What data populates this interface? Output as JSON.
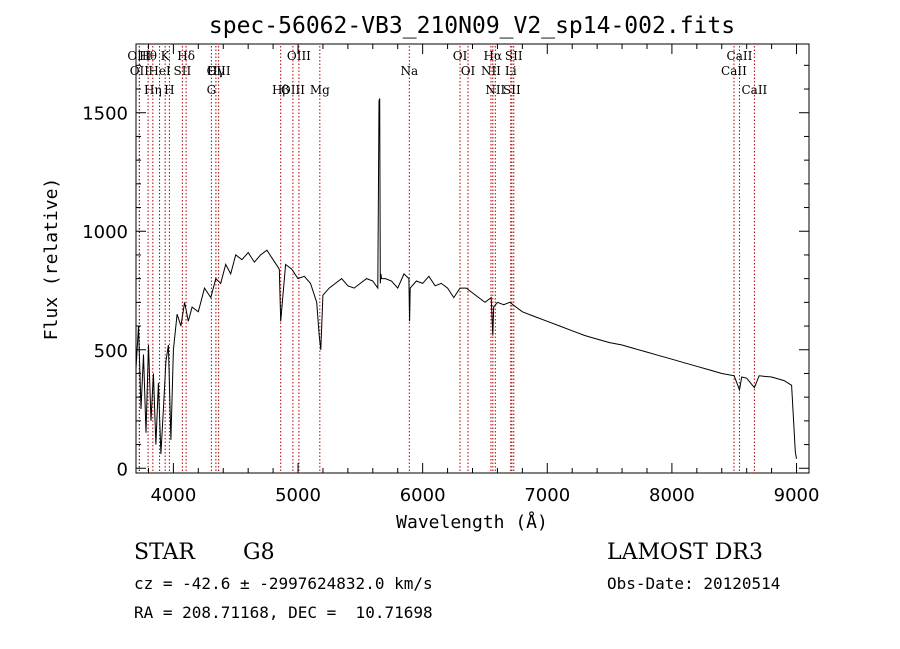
{
  "chart_data": {
    "type": "line",
    "title": "spec-56062-VB3_210N09_V2_sp14-002.fits",
    "xlabel": "Wavelength (Å)",
    "ylabel": "Flux (relative)",
    "xlim": [
      3700,
      9100
    ],
    "ylim": [
      -20,
      1790
    ],
    "xticks": [
      4000,
      5000,
      6000,
      7000,
      8000,
      9000
    ],
    "yticks": [
      0,
      500,
      1000,
      1500
    ],
    "series": [
      {
        "name": "spectrum",
        "x": [
          3700,
          3720,
          3740,
          3760,
          3780,
          3800,
          3820,
          3840,
          3860,
          3880,
          3900,
          3920,
          3940,
          3960,
          3980,
          4000,
          4030,
          4060,
          4090,
          4120,
          4150,
          4200,
          4250,
          4300,
          4340,
          4380,
          4420,
          4460,
          4500,
          4550,
          4600,
          4650,
          4700,
          4750,
          4800,
          4850,
          4861,
          4900,
          4950,
          5000,
          5050,
          5100,
          5150,
          5170,
          5183,
          5200,
          5250,
          5300,
          5350,
          5400,
          5450,
          5500,
          5550,
          5600,
          5640,
          5650,
          5655,
          5660,
          5665,
          5670,
          5700,
          5750,
          5800,
          5850,
          5890,
          5895,
          5900,
          5950,
          6000,
          6050,
          6100,
          6150,
          6200,
          6250,
          6300,
          6350,
          6400,
          6450,
          6500,
          6550,
          6563,
          6570,
          6600,
          6650,
          6700,
          6750,
          6800,
          6900,
          7000,
          7100,
          7200,
          7300,
          7400,
          7500,
          7600,
          7700,
          7800,
          7900,
          8000,
          8100,
          8200,
          8300,
          8400,
          8500,
          8542,
          8560,
          8600,
          8662,
          8700,
          8800,
          8900,
          8960,
          8990,
          9000
        ],
        "y": [
          420,
          600,
          250,
          480,
          150,
          520,
          200,
          400,
          100,
          360,
          60,
          250,
          450,
          520,
          120,
          500,
          650,
          600,
          700,
          620,
          680,
          660,
          760,
          720,
          800,
          780,
          860,
          820,
          900,
          880,
          910,
          870,
          900,
          920,
          880,
          840,
          620,
          860,
          840,
          800,
          810,
          780,
          700,
          560,
          500,
          730,
          760,
          780,
          800,
          770,
          760,
          780,
          800,
          790,
          760,
          1550,
          1560,
          780,
          820,
          800,
          800,
          790,
          760,
          820,
          800,
          620,
          760,
          790,
          780,
          810,
          770,
          780,
          760,
          720,
          760,
          760,
          740,
          720,
          700,
          720,
          560,
          680,
          700,
          690,
          700,
          680,
          660,
          640,
          620,
          600,
          580,
          560,
          545,
          530,
          520,
          505,
          490,
          475,
          460,
          445,
          430,
          415,
          400,
          390,
          330,
          385,
          380,
          340,
          390,
          385,
          370,
          350,
          70,
          40
        ]
      }
    ],
    "spectral_lines": [
      {
        "label": "Hθ",
        "wavelength": 3797
      },
      {
        "label": "OII",
        "wavelength": 3727
      },
      {
        "label": "OIII",
        "wavelength": 3727
      },
      {
        "label": "HeI",
        "wavelength": 3889
      },
      {
        "label": "Hη",
        "wavelength": 3835
      },
      {
        "label": "K",
        "wavelength": 3934
      },
      {
        "label": "H",
        "wavelength": 3968
      },
      {
        "label": "SII",
        "wavelength": 4072
      },
      {
        "label": "Hδ",
        "wavelength": 4102
      },
      {
        "label": "OIII",
        "wavelength": 4363
      },
      {
        "label": "Hγ",
        "wavelength": 4341
      },
      {
        "label": "G",
        "wavelength": 4305
      },
      {
        "label": "OIII",
        "wavelength": 4959
      },
      {
        "label": "OIII",
        "wavelength": 5007
      },
      {
        "label": "Hβ",
        "wavelength": 4861
      },
      {
        "label": "Mg",
        "wavelength": 5175
      },
      {
        "label": "Na",
        "wavelength": 5893
      },
      {
        "label": "OI",
        "wavelength": 6300
      },
      {
        "label": "OI",
        "wavelength": 6364
      },
      {
        "label": "Hα",
        "wavelength": 6563
      },
      {
        "label": "SII",
        "wavelength": 6716
      },
      {
        "label": "NII",
        "wavelength": 6548
      },
      {
        "label": "Li",
        "wavelength": 6707
      },
      {
        "label": "NII",
        "wavelength": 6583
      },
      {
        "label": "SII",
        "wavelength": 6731
      },
      {
        "label": "CaII",
        "wavelength": 8542
      },
      {
        "label": "CaII",
        "wavelength": 8498
      },
      {
        "label": "CaII",
        "wavelength": 8662
      }
    ]
  },
  "info": {
    "class": "STAR",
    "subclass": "G8",
    "survey": "LAMOST DR3",
    "redshift": "cz = -42.6 ± -2997624832.0 km/s",
    "obs_date": "Obs-Date: 20120514",
    "coords": "RA = 208.71168, DEC =  10.71698"
  },
  "colors": {
    "line_marker": "#b00000",
    "axis": "#000000",
    "spectrum": "#000000"
  }
}
